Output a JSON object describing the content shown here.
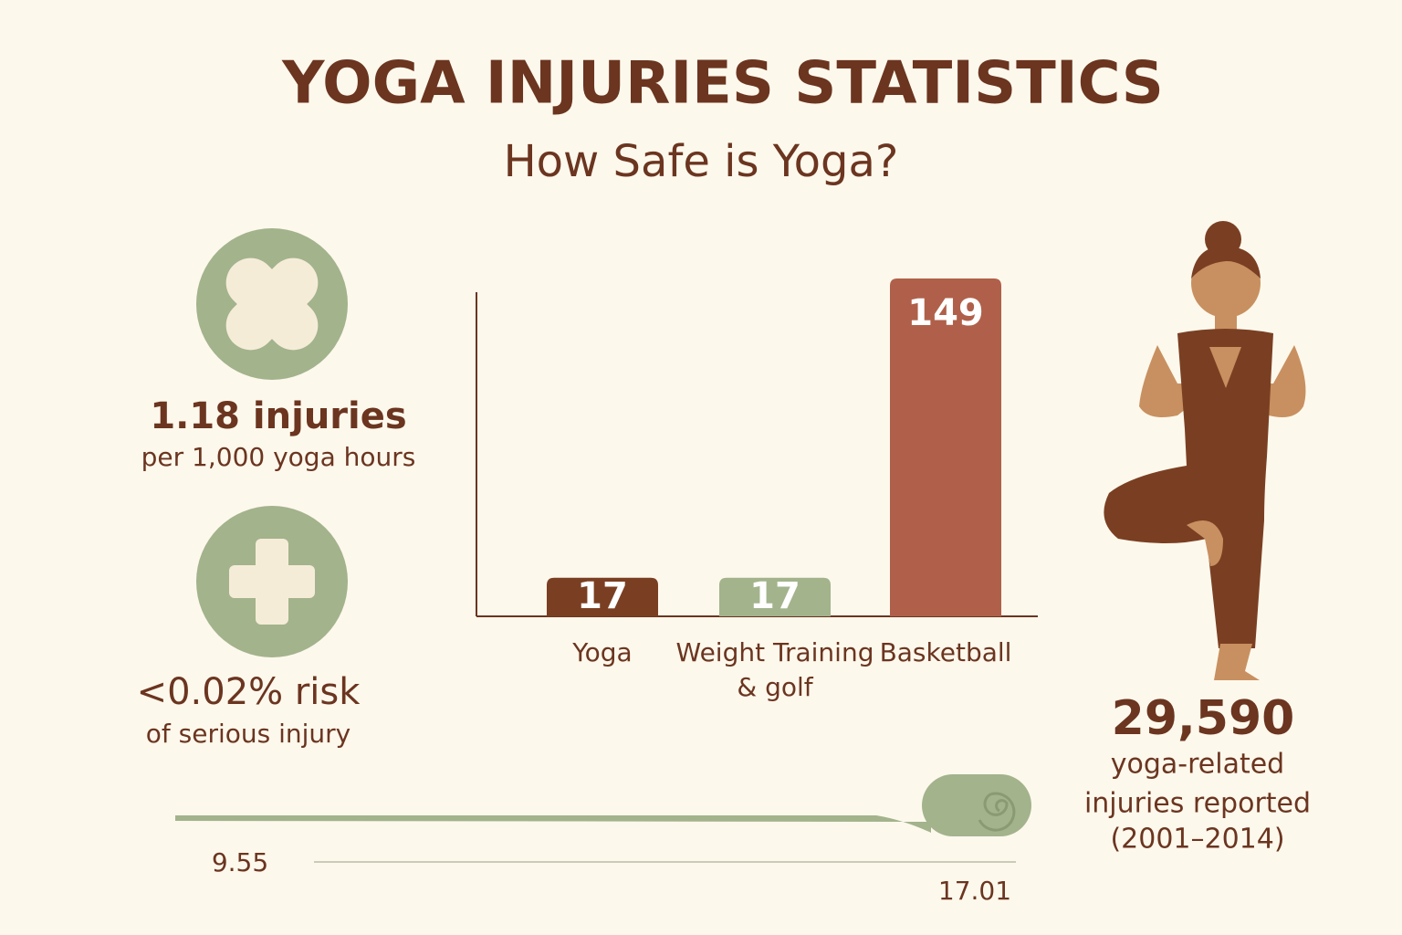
{
  "header": {
    "title": "YOGA INJURIES STATISTICS",
    "subtitle": "How Safe is Yoga?"
  },
  "stats": [
    {
      "headline": "1.18 injuries",
      "detail": "per 1,000 yoga hours"
    },
    {
      "headline": "<0.02% risk",
      "detail": "of serious injury"
    }
  ],
  "total": {
    "headline": "29,590",
    "detail": [
      "yoga-related",
      "injuries reported",
      "(2001–2014)"
    ]
  },
  "scale_labels": [
    "9.55",
    "17.01"
  ],
  "chart_data": {
    "type": "bar",
    "categories": [
      "Yoga",
      "Weight Training & golf",
      "Basketball"
    ],
    "values": [
      17,
      17,
      149
    ],
    "colors": [
      "#7a3f22",
      "#a3b38c",
      "#b0604a"
    ]
  }
}
